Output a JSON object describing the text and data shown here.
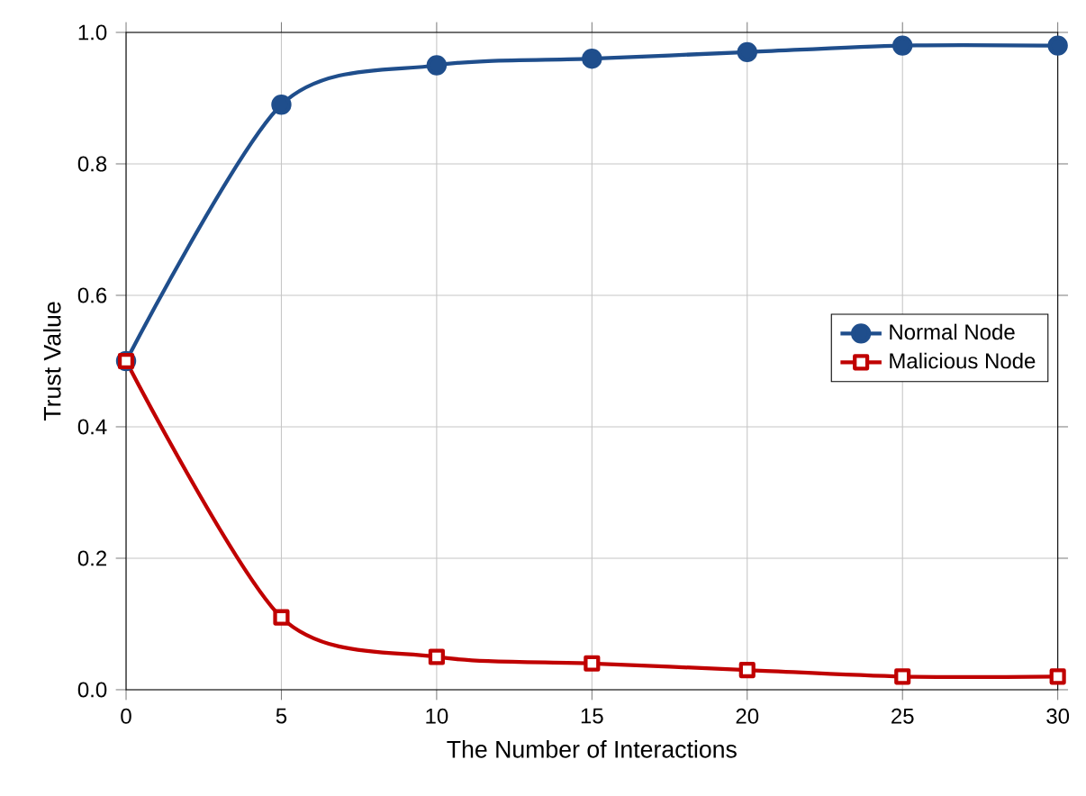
{
  "chart_data": {
    "type": "line",
    "xlabel": "The Number of Interactions",
    "ylabel": "Trust Value",
    "x": [
      0,
      5,
      10,
      15,
      20,
      25,
      30
    ],
    "series": [
      {
        "name": "Normal Node",
        "color": "#1f4e8c",
        "marker": "circle",
        "values": [
          0.5,
          0.89,
          0.95,
          0.96,
          0.97,
          0.98,
          0.98
        ]
      },
      {
        "name": "Malicious Node",
        "color": "#c00000",
        "marker": "square",
        "values": [
          0.5,
          0.11,
          0.05,
          0.04,
          0.03,
          0.02,
          0.02
        ]
      }
    ],
    "xlim": [
      0,
      30
    ],
    "ylim": [
      0,
      1
    ],
    "xticks": [
      0,
      5,
      10,
      15,
      20,
      25,
      30
    ],
    "yticks": [
      {
        "value": 0,
        "label": "0.0"
      },
      {
        "value": 0.2,
        "label": "0.2"
      },
      {
        "value": 0.4,
        "label": "0.4"
      },
      {
        "value": 0.6,
        "label": "0.6"
      },
      {
        "value": 0.8,
        "label": "0.8"
      },
      {
        "value": 1,
        "label": "1.0"
      }
    ],
    "grid": true,
    "legend": "right",
    "line_style": "solid"
  }
}
